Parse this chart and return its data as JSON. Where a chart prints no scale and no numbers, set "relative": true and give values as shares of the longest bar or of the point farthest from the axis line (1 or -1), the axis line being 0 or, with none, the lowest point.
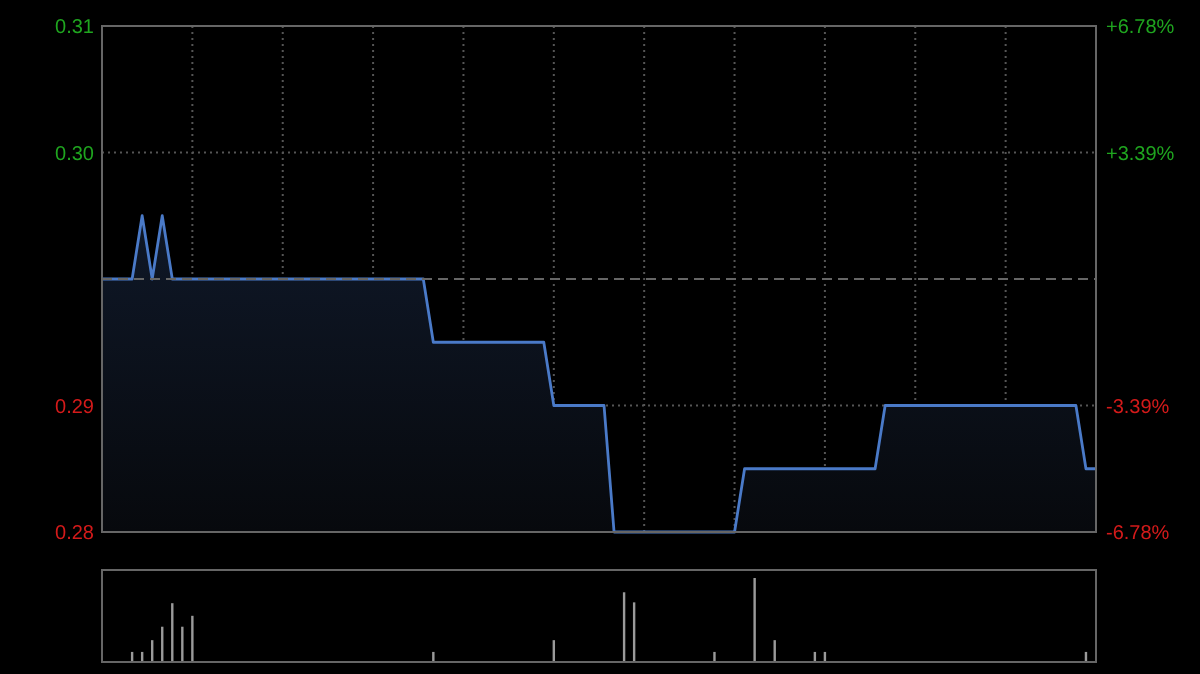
{
  "chart_data": [
    {
      "type": "area",
      "categories": [
        null,
        null,
        null,
        null,
        null,
        null,
        null,
        null,
        null,
        null,
        null,
        null,
        null,
        null,
        null,
        null,
        null,
        null,
        null,
        null,
        null,
        null,
        null,
        null,
        null,
        null,
        null,
        null,
        null,
        null,
        null,
        null,
        null,
        null,
        null,
        null,
        null,
        null,
        null,
        null,
        null,
        null,
        null,
        null,
        null,
        null,
        null,
        null,
        null,
        null,
        null,
        null,
        null,
        null,
        null,
        null,
        null,
        null,
        null,
        null,
        null,
        null,
        null,
        null,
        null,
        null,
        null,
        null,
        null,
        null,
        null,
        null,
        null,
        null,
        null,
        null,
        null,
        null,
        null,
        null,
        null,
        null,
        null,
        null,
        null,
        null,
        null,
        null,
        null,
        null,
        null,
        null,
        null,
        null,
        null,
        null,
        null,
        null,
        null,
        null
      ],
      "series": [
        {
          "color": "#4a7ac8",
          "values": [
            0.295,
            0.295,
            0.295,
            0.295,
            0.3,
            0.295,
            0.3,
            0.295,
            0.295,
            0.295,
            0.295,
            0.295,
            0.295,
            0.295,
            0.295,
            0.295,
            0.295,
            0.295,
            0.295,
            0.295,
            0.295,
            0.295,
            0.295,
            0.295,
            0.295,
            0.295,
            0.295,
            0.295,
            0.295,
            0.295,
            0.295,
            0.295,
            0.295,
            0.29,
            0.29,
            0.29,
            0.29,
            0.29,
            0.29,
            0.29,
            0.29,
            0.29,
            0.29,
            0.29,
            0.29,
            0.285,
            0.285,
            0.285,
            0.285,
            0.285,
            0.285,
            0.275,
            0.275,
            0.275,
            0.275,
            0.275,
            0.275,
            0.275,
            0.275,
            0.275,
            0.275,
            0.275,
            0.275,
            0.275,
            0.28,
            0.28,
            0.28,
            0.28,
            0.28,
            0.28,
            0.28,
            0.28,
            0.28,
            0.28,
            0.28,
            0.28,
            0.28,
            0.28,
            0.285,
            0.285,
            0.285,
            0.285,
            0.285,
            0.285,
            0.285,
            0.285,
            0.285,
            0.285,
            0.285,
            0.285,
            0.285,
            0.285,
            0.285,
            0.285,
            0.285,
            0.285,
            0.285,
            0.285,
            0.28,
            0.28
          ]
        }
      ],
      "ylim": [
        0.275,
        0.315
      ],
      "yticks": [
        {
          "value": 0.275,
          "label": "0.28"
        },
        {
          "value": 0.285,
          "label": "0.29"
        },
        {
          "value": 0.305,
          "label": "0.30"
        },
        {
          "value": 0.315,
          "label": "0.31"
        }
      ],
      "y2lim": [
        -6.78,
        6.78
      ],
      "y2ticks": [
        {
          "value": -6.78,
          "label": "-6.78%"
        },
        {
          "value": -3.39,
          "label": "-3.39%"
        },
        {
          "value": 3.39,
          "label": "+3.39%"
        },
        {
          "value": 6.78,
          "label": "+6.78%"
        }
      ],
      "ref_lines": [
        {
          "axis": "y",
          "value": 0.295,
          "line_style": "dashed"
        }
      ],
      "grid": true,
      "tick_labels": "y"
    },
    {
      "type": "bar",
      "relative": true,
      "color": "#9a9a9a",
      "categories": [
        null,
        null,
        null,
        null,
        null,
        null,
        null,
        null,
        null,
        null,
        null,
        null,
        null,
        null,
        null,
        null,
        null,
        null,
        null,
        null,
        null,
        null,
        null,
        null,
        null,
        null,
        null,
        null,
        null,
        null,
        null,
        null,
        null,
        null,
        null,
        null,
        null,
        null,
        null,
        null,
        null,
        null,
        null,
        null,
        null,
        null,
        null,
        null,
        null,
        null,
        null,
        null,
        null,
        null,
        null,
        null,
        null,
        null,
        null,
        null,
        null,
        null,
        null,
        null,
        null,
        null,
        null,
        null,
        null,
        null,
        null,
        null,
        null,
        null,
        null,
        null,
        null,
        null,
        null,
        null,
        null,
        null,
        null,
        null,
        null,
        null,
        null,
        null,
        null,
        null,
        null,
        null,
        null,
        null,
        null,
        null,
        null,
        null,
        null,
        null
      ],
      "values": [
        0,
        0,
        0,
        0.12,
        0.12,
        0.26,
        0.42,
        0.7,
        0.42,
        0.55,
        0,
        0,
        0,
        0,
        0,
        0,
        0,
        0,
        0,
        0,
        0,
        0,
        0,
        0,
        0,
        0,
        0,
        0,
        0,
        0,
        0,
        0,
        0,
        0.12,
        0,
        0,
        0,
        0,
        0,
        0,
        0,
        0,
        0,
        0,
        0,
        0.26,
        0,
        0,
        0,
        0,
        0,
        0,
        0.83,
        0.71,
        0,
        0,
        0,
        0,
        0,
        0,
        0,
        0.12,
        0,
        0,
        0,
        1,
        0,
        0.26,
        0,
        0,
        0,
        0.12,
        0.12,
        0,
        0,
        0,
        0,
        0,
        0,
        0,
        0,
        0,
        0,
        0,
        0,
        0,
        0,
        0,
        0,
        0,
        0,
        0,
        0,
        0,
        0,
        0,
        0,
        0,
        0.12,
        0
      ],
      "tick_labels": false
    }
  ]
}
